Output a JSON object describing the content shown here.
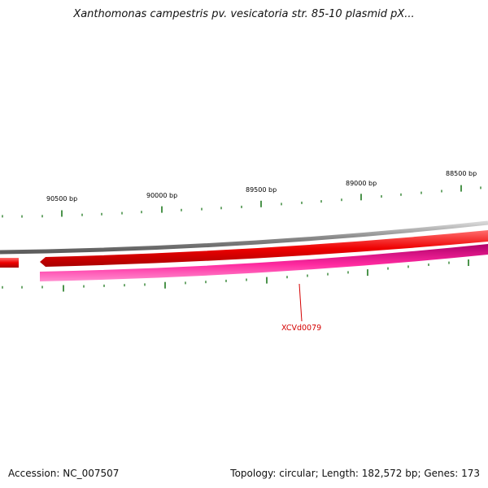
{
  "title": "Xanthomonas campestris pv. vesicatoria str. 85-10 plasmid pX...",
  "footer": {
    "accession": "Accession: NC_007507",
    "summary": "Topology: circular; Length: 182,572 bp; Genes: 173"
  },
  "scale": {
    "major_tick_labels": [
      "90500 bp",
      "90000 bp",
      "89500 bp",
      "89000 bp",
      "88500 bp"
    ]
  },
  "features": {
    "highlighted_gene_label": "XCVd0079"
  },
  "colors": {
    "backbone": "#8c8c8c",
    "forward_gene": "#ee0000",
    "reverse_gene": "#ff2aa0",
    "ticks": "#1f7a1f",
    "label": "#d40000"
  }
}
